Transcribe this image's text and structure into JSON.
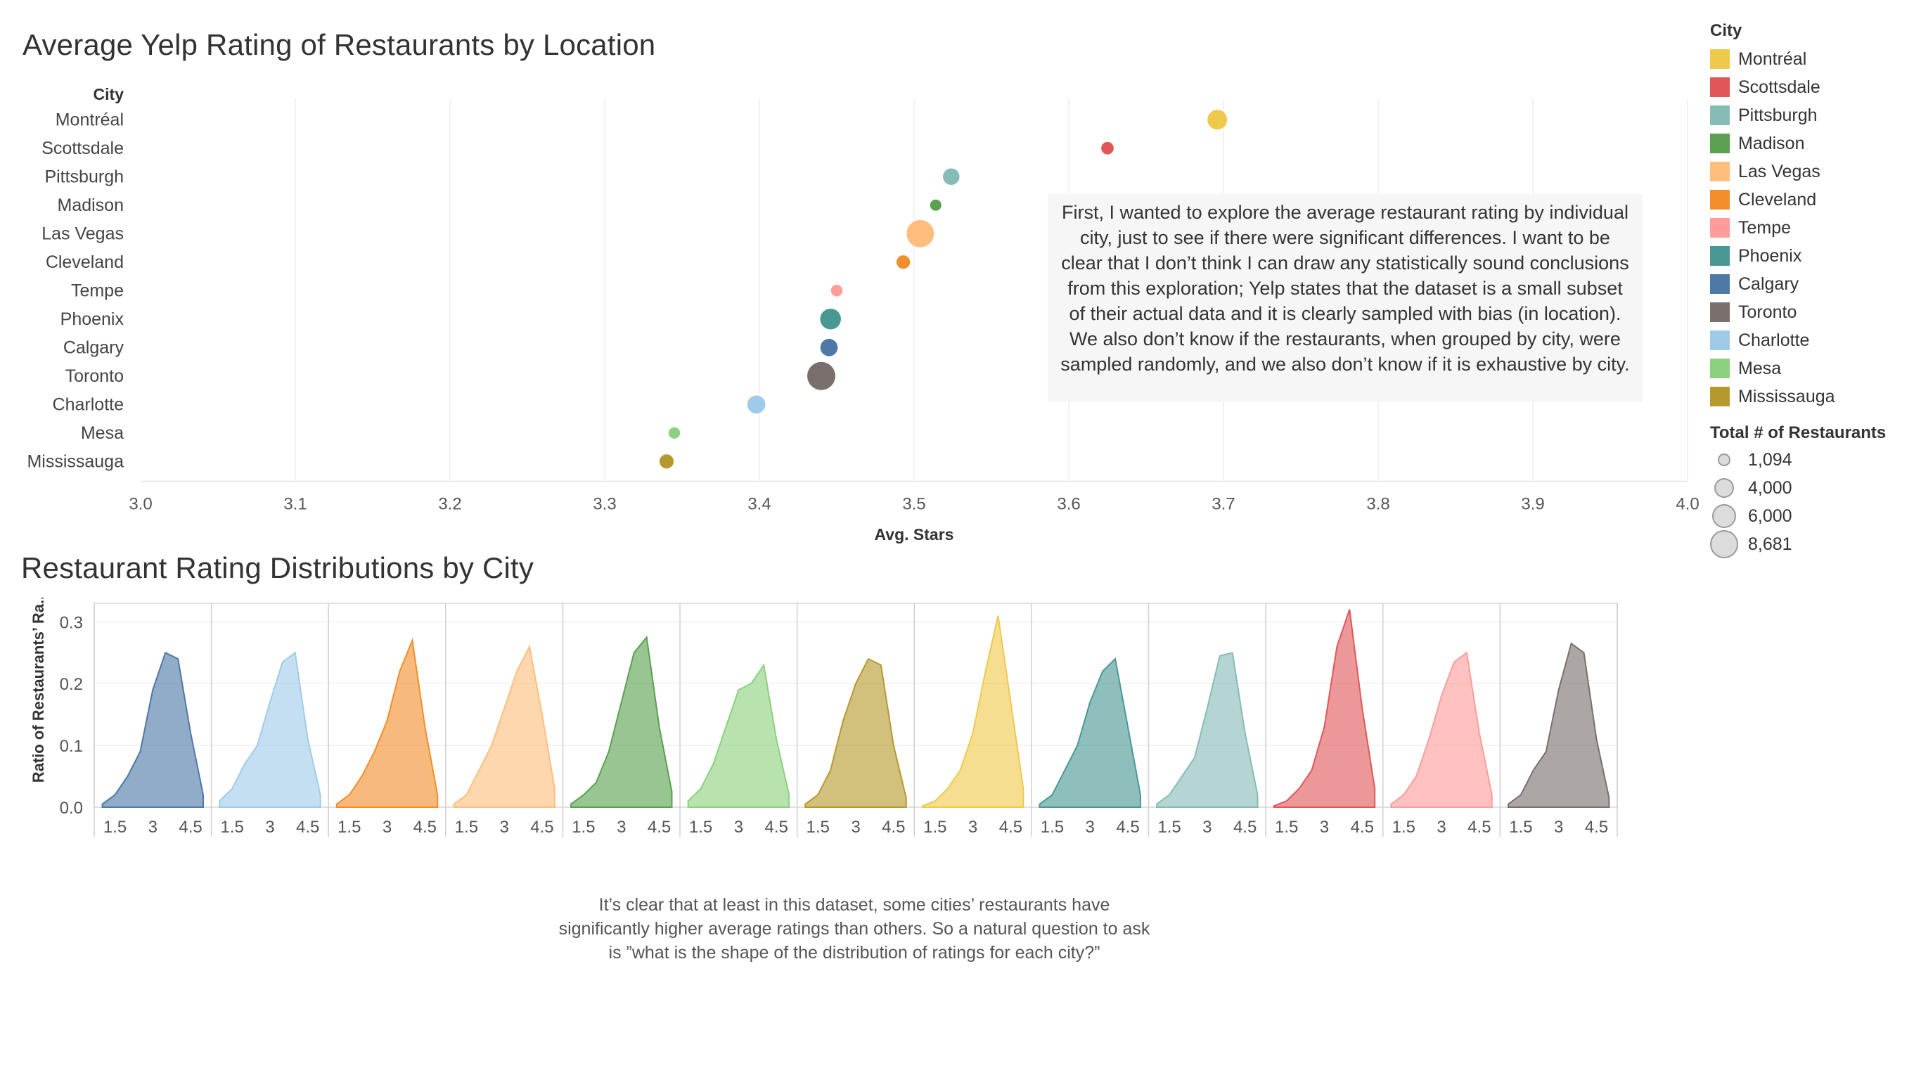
{
  "top_title": "Average Yelp Rating of Restaurants by Location",
  "bottom_title": "Restaurant Rating Distributions by City",
  "callout_text": "First, I wanted to explore the average restaurant rating by individual city, just to see if there were significant differences. I want to be clear that I don’t think I can draw any statistically sound conclusions from this exploration; Yelp states that the dataset is a small subset of their actual data and it is clearly sampled with bias (in location). We also don’t know if the restaurants, when grouped by city, were sampled randomly, and we also don’t know if it is exhaustive by city.",
  "footnote_text": "It’s clear that at least in this dataset, some cities’ restaurants have significantly higher average ratings than others. So a natural question to ask is ”what is the shape of the distribution of ratings for each city?”",
  "legend": {
    "color_title": "City",
    "cities": [
      {
        "name": "Montréal",
        "color": "#EFC94C"
      },
      {
        "name": "Scottsdale",
        "color": "#E15759"
      },
      {
        "name": "Pittsburgh",
        "color": "#86BCB6"
      },
      {
        "name": "Madison",
        "color": "#59A14F"
      },
      {
        "name": "Las Vegas",
        "color": "#FFBE7D"
      },
      {
        "name": "Cleveland",
        "color": "#F28E2B"
      },
      {
        "name": "Tempe",
        "color": "#FF9D9A"
      },
      {
        "name": "Phoenix",
        "color": "#499894"
      },
      {
        "name": "Calgary",
        "color": "#4E79A7"
      },
      {
        "name": "Toronto",
        "color": "#79706E"
      },
      {
        "name": "Charlotte",
        "color": "#A0CBE8"
      },
      {
        "name": "Mesa",
        "color": "#8CD17D"
      },
      {
        "name": "Mississauga",
        "color": "#B6992D"
      }
    ],
    "size_title": "Total # of Restaurants",
    "sizes": [
      "1,094",
      "4,000",
      "6,000",
      "8,681"
    ]
  },
  "chart_data": [
    {
      "type": "scatter",
      "title": "Average Yelp Rating of Restaurants by Location",
      "ylabel": "City",
      "xlabel": "Avg. Stars",
      "xlim": [
        3.0,
        4.0
      ],
      "xticks": [
        "3.0",
        "3.1",
        "3.2",
        "3.3",
        "3.4",
        "3.5",
        "3.6",
        "3.7",
        "3.8",
        "3.9",
        "4.0"
      ],
      "grid": true,
      "size_encoding": "Total # of Restaurants",
      "points": [
        {
          "city": "Montréal",
          "avg_stars": 3.696,
          "restaurants": 4000
        },
        {
          "city": "Scottsdale",
          "avg_stars": 3.625,
          "restaurants": 1400
        },
        {
          "city": "Pittsburgh",
          "avg_stars": 3.524,
          "restaurants": 2700
        },
        {
          "city": "Madison",
          "avg_stars": 3.514,
          "restaurants": 1094
        },
        {
          "city": "Las Vegas",
          "avg_stars": 3.504,
          "restaurants": 8200
        },
        {
          "city": "Cleveland",
          "avg_stars": 3.493,
          "restaurants": 1700
        },
        {
          "city": "Tempe",
          "avg_stars": 3.45,
          "restaurants": 1200
        },
        {
          "city": "Phoenix",
          "avg_stars": 3.446,
          "restaurants": 4500
        },
        {
          "city": "Calgary",
          "avg_stars": 3.445,
          "restaurants": 3000
        },
        {
          "city": "Toronto",
          "avg_stars": 3.44,
          "restaurants": 8681
        },
        {
          "city": "Charlotte",
          "avg_stars": 3.398,
          "restaurants": 3300
        },
        {
          "city": "Mesa",
          "avg_stars": 3.345,
          "restaurants": 1150
        },
        {
          "city": "Mississauga",
          "avg_stars": 3.34,
          "restaurants": 1900
        }
      ]
    },
    {
      "type": "area",
      "title": "Restaurant Rating Distributions by City",
      "ylabel": "Ratio of Restaurants’ Ra..",
      "ylim": [
        0,
        0.33
      ],
      "yticks": [
        "0.0",
        "0.1",
        "0.2",
        "0.3"
      ],
      "xticks": [
        "1.5",
        "3",
        "4.5"
      ],
      "x": [
        1.0,
        1.5,
        2.0,
        2.5,
        3.0,
        3.5,
        4.0,
        4.5,
        5.0
      ],
      "grid": true,
      "series": [
        {
          "name": "Calgary",
          "color": "#4E79A7",
          "values": [
            0.005,
            0.02,
            0.05,
            0.09,
            0.19,
            0.25,
            0.24,
            0.12,
            0.02
          ]
        },
        {
          "name": "Charlotte",
          "color": "#A0CBE8",
          "values": [
            0.01,
            0.03,
            0.07,
            0.1,
            0.17,
            0.235,
            0.25,
            0.11,
            0.02
          ]
        },
        {
          "name": "Cleveland",
          "color": "#F28E2B",
          "values": [
            0.005,
            0.02,
            0.05,
            0.09,
            0.14,
            0.22,
            0.27,
            0.13,
            0.02
          ]
        },
        {
          "name": "Las Vegas",
          "color": "#FFBE7D",
          "values": [
            0.005,
            0.02,
            0.06,
            0.1,
            0.16,
            0.22,
            0.26,
            0.15,
            0.03
          ]
        },
        {
          "name": "Madison",
          "color": "#59A14F",
          "values": [
            0.005,
            0.02,
            0.04,
            0.09,
            0.17,
            0.25,
            0.275,
            0.13,
            0.025
          ]
        },
        {
          "name": "Mesa",
          "color": "#8CD17D",
          "values": [
            0.01,
            0.03,
            0.07,
            0.13,
            0.19,
            0.2,
            0.23,
            0.11,
            0.02
          ]
        },
        {
          "name": "Mississauga",
          "color": "#B6992D",
          "values": [
            0.005,
            0.02,
            0.06,
            0.14,
            0.2,
            0.24,
            0.23,
            0.1,
            0.015
          ]
        },
        {
          "name": "Montréal",
          "color": "#EFC94C",
          "values": [
            0.002,
            0.01,
            0.03,
            0.06,
            0.12,
            0.22,
            0.31,
            0.17,
            0.03
          ]
        },
        {
          "name": "Phoenix",
          "color": "#499894",
          "values": [
            0.005,
            0.02,
            0.06,
            0.1,
            0.17,
            0.22,
            0.24,
            0.13,
            0.02
          ]
        },
        {
          "name": "Pittsburgh",
          "color": "#86BCB6",
          "values": [
            0.005,
            0.02,
            0.05,
            0.08,
            0.16,
            0.245,
            0.25,
            0.12,
            0.02
          ]
        },
        {
          "name": "Scottsdale",
          "color": "#E15759",
          "values": [
            0.002,
            0.01,
            0.03,
            0.06,
            0.13,
            0.26,
            0.32,
            0.16,
            0.03
          ]
        },
        {
          "name": "Tempe",
          "color": "#FF9D9A",
          "values": [
            0.005,
            0.02,
            0.05,
            0.11,
            0.18,
            0.235,
            0.25,
            0.12,
            0.02
          ]
        },
        {
          "name": "Toronto",
          "color": "#79706E",
          "values": [
            0.005,
            0.02,
            0.06,
            0.09,
            0.19,
            0.265,
            0.25,
            0.11,
            0.015
          ]
        }
      ]
    }
  ]
}
